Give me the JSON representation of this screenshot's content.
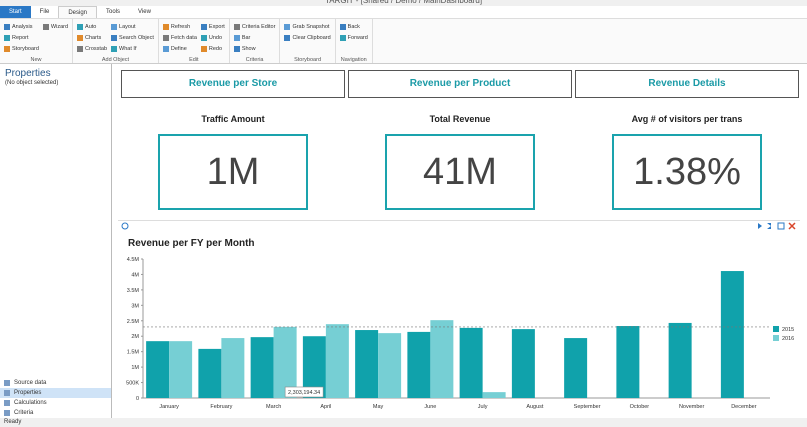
{
  "window": {
    "title": "TARGIT - [Shared / Demo / MainDashboard]"
  },
  "tabs": [
    "Start",
    "File",
    "Design",
    "Tools",
    "View"
  ],
  "ribbon": [
    {
      "name": "New",
      "items": [
        "Analysis",
        "Report",
        "Storyboard",
        "Wizard"
      ]
    },
    {
      "name": "Add Object",
      "items": [
        "Auto",
        "Charts",
        "Crosstab",
        "Layout",
        "Search Object",
        "What If"
      ]
    },
    {
      "name": "Edit",
      "items": [
        "Refresh",
        "Fetch data",
        "Define",
        "Export",
        "Undo",
        "Redo"
      ]
    },
    {
      "name": "Criteria",
      "items": [
        "Criteria Editor",
        "Bar",
        "Show"
      ]
    },
    {
      "name": "Storyboard",
      "items": [
        "Grab Snapshot",
        "Clear Clipboard"
      ]
    },
    {
      "name": "Navigation",
      "items": [
        "Back",
        "Forward"
      ]
    }
  ],
  "sidebar": {
    "title": "Properties",
    "subtitle": "(No object selected)",
    "links": [
      "Source data",
      "Properties",
      "Calculations",
      "Criteria"
    ]
  },
  "dashboard": {
    "buttons": [
      "Revenue per Store",
      "Revenue per Product",
      "Revenue Details"
    ],
    "kpis": [
      {
        "label": "Traffic Amount",
        "value": "1M"
      },
      {
        "label": "Total Revenue",
        "value": "41M"
      },
      {
        "label": "Avg # of visitors per trans",
        "value": "1.38%"
      }
    ]
  },
  "chart_data": {
    "type": "bar",
    "title": "Revenue per FY per Month",
    "categories": [
      "January",
      "February",
      "March",
      "April",
      "May",
      "June",
      "July",
      "August",
      "September",
      "October",
      "November",
      "December"
    ],
    "series": [
      {
        "name": "2015",
        "color": "#10a2ab",
        "values": [
          1840000,
          1590000,
          1970000,
          2000000,
          2200000,
          2140000,
          2270000,
          2230000,
          1940000,
          2330000,
          2430000,
          4110000
        ]
      },
      {
        "name": "2016",
        "color": "#76cfd4",
        "values": [
          1840000,
          1940000,
          2303194.34,
          2390000,
          2100000,
          2520000,
          190000,
          null,
          null,
          null,
          null,
          null
        ],
        "value_labels": [
          null,
          null,
          "2,303,194.34",
          null,
          null,
          null,
          null,
          null,
          null,
          null,
          null,
          null
        ]
      }
    ],
    "average_line": 2300000,
    "ylim": [
      0,
      4500000
    ],
    "yticks": [
      0,
      {
        "value": 500000,
        "label": "500K"
      },
      {
        "value": 1000000,
        "label": "1M"
      },
      {
        "value": 1500000,
        "label": "1.5M"
      },
      {
        "value": 2000000,
        "label": "2M"
      },
      {
        "value": 2500000,
        "label": "2.5M"
      },
      {
        "value": 3000000,
        "label": "3M"
      },
      {
        "value": 3500000,
        "label": "3.5M"
      },
      {
        "value": 4000000,
        "label": "4M"
      },
      {
        "value": 4500000,
        "label": "4.5M"
      }
    ],
    "grid": false,
    "legend": "right"
  },
  "status": "Ready"
}
